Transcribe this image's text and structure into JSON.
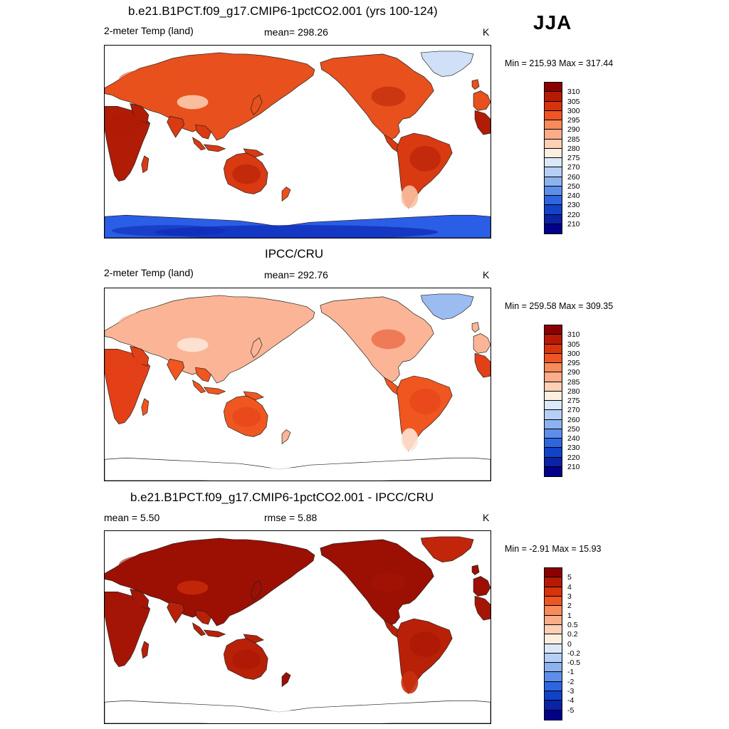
{
  "season": "JJA",
  "panels": [
    {
      "title": "b.e21.B1PCT.f09_g17.CMIP6-1pctCO2.001 (yrs 100-124)",
      "left_label": "2-meter Temp (land)",
      "center_label": "mean= 298.26",
      "units": "K",
      "minmax": "Min = 215.93 Max = 317.44",
      "colorbar_labels": [
        "310",
        "305",
        "300",
        "295",
        "290",
        "285",
        "280",
        "275",
        "270",
        "260",
        "250",
        "240",
        "230",
        "220",
        "210"
      ],
      "field": {
        "north": "#e8501d",
        "tropics": "#d93a12",
        "desert": "#b01c06",
        "highland": "#fbc3a4",
        "greenland": "#cfe0f7",
        "antarctica": "#2b5ee6",
        "ant_deep": "#0d2bb8",
        "south_tip": "#fbc0a0"
      }
    },
    {
      "title": "IPCC/CRU",
      "left_label": "2-meter Temp (land)",
      "center_label": "mean= 292.76",
      "units": "K",
      "minmax": "Min = 259.58 Max = 309.35",
      "colorbar_labels": [
        "310",
        "305",
        "300",
        "295",
        "290",
        "285",
        "280",
        "275",
        "270",
        "260",
        "250",
        "240",
        "230",
        "220",
        "210"
      ],
      "field": {
        "north": "#fbb596",
        "tropics": "#f0561f",
        "desert": "#e34017",
        "highland": "#fde4d3",
        "greenland": "#9bbcf1",
        "antarctica": "#ffffff",
        "ant_deep": "#ffffff",
        "south_tip": "#fde4d3"
      }
    },
    {
      "title": "b.e21.B1PCT.f09_g17.CMIP6-1pctCO2.001 - IPCC/CRU",
      "left_label": "mean =   5.50",
      "center_label": "rmse =   5.88",
      "units": "K",
      "minmax": "Min =  -2.91 Max =  15.93",
      "colorbar_labels": [
        "5",
        "4",
        "3",
        "2",
        "1",
        "0.5",
        "0.2",
        "0",
        "-0.2",
        "-0.5",
        "-1",
        "-2",
        "-3",
        "-4",
        "-5"
      ],
      "field": {
        "north": "#9c0f03",
        "tropics": "#b82108",
        "desert": "#a51505",
        "highland": "#c4280a",
        "greenland": "#c1250a",
        "antarctica": "#ffffff",
        "ant_deep": "#ffffff",
        "south_tip": "#c83010"
      }
    }
  ],
  "colorbar_colors": [
    "#8b0000",
    "#b71a04",
    "#d7330c",
    "#ee5523",
    "#f78b59",
    "#fbac88",
    "#fdd0b6",
    "#fdeee0",
    "#dbe8f8",
    "#b6cff5",
    "#8db2f0",
    "#5d8fea",
    "#2e66e0",
    "#1242c8",
    "#0a22a5",
    "#00008a"
  ]
}
